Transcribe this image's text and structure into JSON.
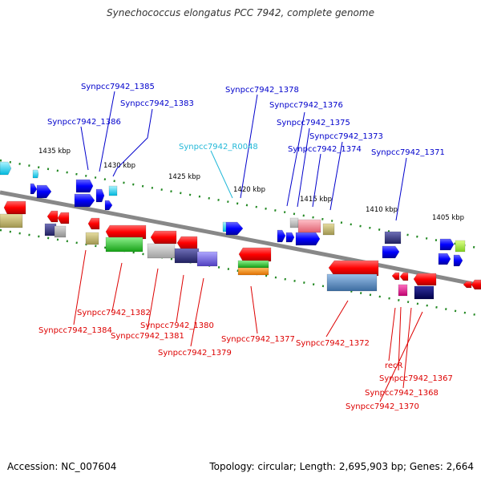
{
  "title": "Synechococcus elongatus PCC 7942, complete genome",
  "footer": {
    "accession": "Accession: NC_007604",
    "summary": "Topology: circular; Length: 2,695,903 bp; Genes: 2,664"
  },
  "colors": {
    "forward_label": "#0000cc",
    "rna_label": "#22b8d8",
    "reverse_label": "#dd0000",
    "backbone": "#888888",
    "tick": "#228822"
  },
  "scale_labels": [
    "1435 kbp",
    "1430 kbp",
    "1425 kbp",
    "1420 kbp",
    "1415 kbp",
    "1410 kbp",
    "1405 kbp"
  ],
  "forward_genes": [
    "Synpcc7942_1385",
    "Synpcc7942_1383",
    "Synpcc7942_1386",
    "Synpcc7942_1378",
    "Synpcc7942_1376",
    "Synpcc7942_1375",
    "Synpcc7942_1373",
    "Synpcc7942_1374",
    "Synpcc7942_1371"
  ],
  "rna_genes": [
    "Synpcc7942_R0048"
  ],
  "reverse_genes": [
    "Synpcc7942_1382",
    "Synpcc7942_1384",
    "Synpcc7942_1381",
    "Synpcc7942_1380",
    "Synpcc7942_1379",
    "Synpcc7942_1377",
    "Synpcc7942_1372",
    "recR",
    "Synpcc7942_1367",
    "Synpcc7942_1368",
    "Synpcc7942_1370"
  ]
}
